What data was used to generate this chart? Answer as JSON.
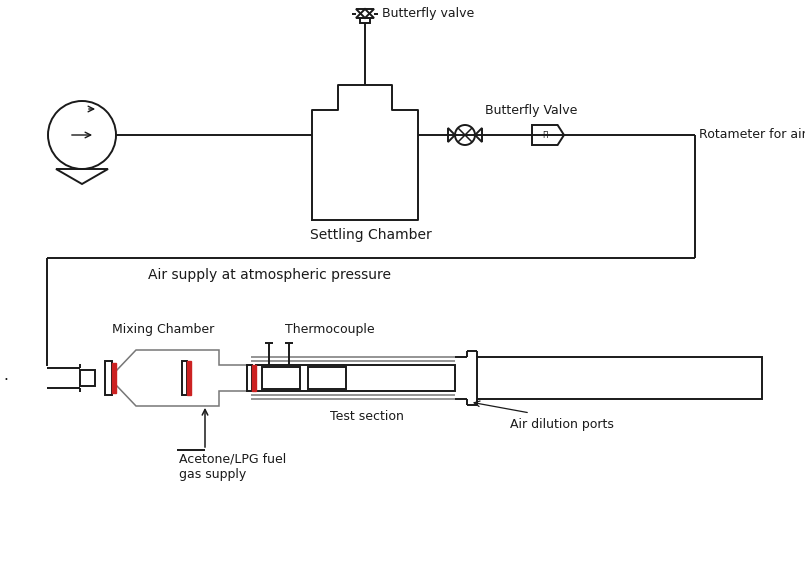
{
  "bg_color": "#ffffff",
  "line_color": "#1a1a1a",
  "red_color": "#cc2222",
  "gray_color": "#777777",
  "labels": {
    "butterfly_valve_top": "Butterfly valve",
    "butterfly_valve_side": "Butterfly Valve",
    "settling_chamber": "Settling Chamber",
    "air_supply": "Air supply at atmospheric pressure",
    "rotameter": "Rotameter for air",
    "mixing_chamber": "Mixing Chamber",
    "thermocouple": "Thermocouple",
    "test_section": "Test section",
    "air_dilution": "Air dilution ports",
    "fuel_supply": "Acetone/LPG fuel\ngas supply"
  },
  "figsize": [
    8.05,
    5.65
  ],
  "dpi": 100
}
